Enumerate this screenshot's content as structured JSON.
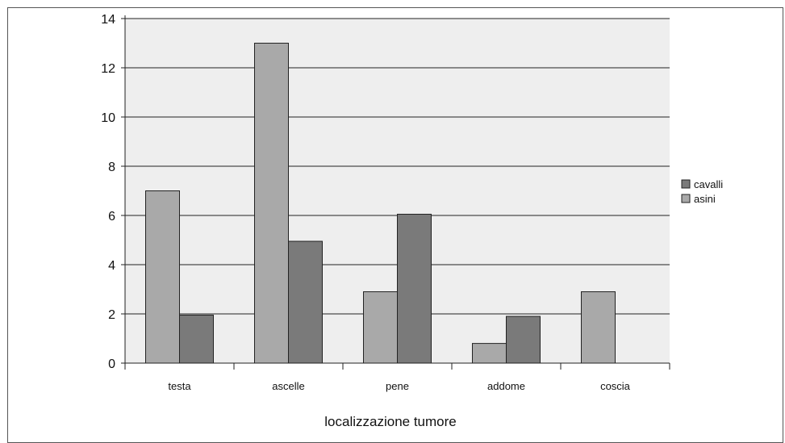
{
  "chart_data": {
    "type": "bar",
    "categories": [
      "testa",
      "ascelle",
      "pene",
      "addome",
      "coscia"
    ],
    "series": [
      {
        "name": "asini",
        "values": [
          7,
          13,
          2.9,
          0.8,
          2.9
        ],
        "color": "#a9a9a9"
      },
      {
        "name": "cavalli",
        "values": [
          1.95,
          4.95,
          6.05,
          1.9,
          0
        ],
        "color": "#7a7a7a"
      }
    ],
    "xlabel": "localizzazione tumore",
    "ylabel": "",
    "ylim": [
      0,
      14
    ],
    "yticks": [
      "0",
      "2",
      "4",
      "6",
      "8",
      "10",
      "12",
      "14"
    ],
    "grid": true,
    "plot_background": "#eeeeee",
    "legend": {
      "placement": "right",
      "entries": [
        {
          "label": "cavalli",
          "color": "#7a7a7a"
        },
        {
          "label": "asini",
          "color": "#a9a9a9"
        }
      ]
    }
  }
}
